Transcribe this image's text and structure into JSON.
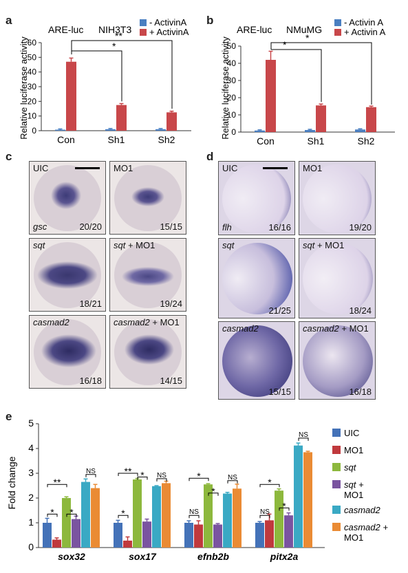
{
  "panels": {
    "a": {
      "letter": "a",
      "reporter": "ARE-luc",
      "cell_line": "NIH3T3",
      "legend": [
        "- ActivinA",
        "+ ActivinA"
      ],
      "ylabel": "Relative luciferase activity",
      "sig": [
        "*",
        "**"
      ]
    },
    "b": {
      "letter": "b",
      "reporter": "ARE-luc",
      "cell_line": "NMuMG",
      "legend": [
        "- Activin A",
        "+ Activin A"
      ],
      "ylabel": "Relative luciferase activity",
      "sig": [
        "*",
        "*"
      ]
    },
    "c": {
      "letter": "c",
      "cells": [
        {
          "label": "UIC",
          "label_italic": "",
          "gene": "gsc",
          "count": "20/20"
        },
        {
          "label": "MO1",
          "label_italic": "",
          "gene": "",
          "count": "15/15"
        },
        {
          "label": "",
          "label_italic": "sqt",
          "gene": "",
          "count": "18/21"
        },
        {
          "label": " + MO1",
          "label_italic": "sqt",
          "gene": "",
          "count": "19/24"
        },
        {
          "label": "",
          "label_italic": "casmad2",
          "gene": "",
          "count": "16/18"
        },
        {
          "label": " + MO1",
          "label_italic": "casmad2",
          "gene": "",
          "count": "14/15"
        }
      ]
    },
    "d": {
      "letter": "d",
      "cells": [
        {
          "label": "UIC",
          "label_italic": "",
          "gene": "flh",
          "count": "16/16"
        },
        {
          "label": "MO1",
          "label_italic": "",
          "gene": "",
          "count": "19/20"
        },
        {
          "label": "",
          "label_italic": "sqt",
          "gene": "",
          "count": "21/25"
        },
        {
          "label": " + MO1",
          "label_italic": "sqt",
          "gene": "",
          "count": "18/24"
        },
        {
          "label": "",
          "label_italic": "casmad2",
          "gene": "",
          "count": "15/15"
        },
        {
          "label": " + MO1",
          "label_italic": "casmad2",
          "gene": "",
          "count": "16/18"
        }
      ]
    },
    "e": {
      "letter": "e",
      "ylabel": "Fold change",
      "legend": [
        {
          "text": "UIC",
          "text2": ""
        },
        {
          "text": "MO1",
          "text2": ""
        },
        {
          "text": "sqt",
          "text2": ""
        },
        {
          "text": "sqt +",
          "text2": "MO1"
        },
        {
          "text": "casmad2",
          "text2": ""
        },
        {
          "text": "casmad2 +",
          "text2": "MO1"
        }
      ],
      "sig_labels": {
        "star": "*",
        "double": "**",
        "ns": "NS"
      }
    }
  },
  "colors": {
    "minus": "#4a7fc1",
    "plus": "#c8474a",
    "uic": "#4472b8",
    "mo1": "#c0393d",
    "sqt": "#8db83d",
    "sqt_mo1": "#7a54a0",
    "casmad2": "#3aa9c4",
    "casmad2_mo1": "#ea8b34"
  },
  "chart_data": [
    {
      "id": "a",
      "type": "bar",
      "categories": [
        "Con",
        "Sh1",
        "Sh2"
      ],
      "series": [
        {
          "name": "- ActivinA",
          "values": [
            0.7,
            1.0,
            1.0
          ],
          "errors": [
            0.5,
            0.5,
            0.5
          ]
        },
        {
          "name": "+ ActivinA",
          "values": [
            47,
            17.5,
            12.5
          ],
          "errors": [
            2.5,
            1.0,
            0.8
          ]
        }
      ],
      "yticks": [
        0,
        10,
        20,
        30,
        40,
        50,
        60
      ],
      "ylim": [
        0,
        60
      ],
      "ylabel": "Relative luciferase activity"
    },
    {
      "id": "b",
      "type": "bar",
      "categories": [
        "Con",
        "Sh1",
        "Sh2"
      ],
      "series": [
        {
          "name": "- Activin A",
          "values": [
            0.9,
            1.2,
            1.5
          ],
          "errors": [
            0.4,
            0.4,
            0.4
          ]
        },
        {
          "name": "+ Activin A",
          "values": [
            42,
            15.5,
            14.5
          ],
          "errors": [
            5,
            0.8,
            0.6
          ]
        }
      ],
      "yticks": [
        0,
        10,
        20,
        30,
        40,
        50
      ],
      "ylim": [
        0,
        50
      ],
      "ylabel": "Relative luciferase activity"
    },
    {
      "id": "e",
      "type": "bar",
      "categories": [
        "sox32",
        "sox17",
        "efnb2b",
        "pitx2a"
      ],
      "series": [
        {
          "name": "UIC",
          "values": [
            1.0,
            1.0,
            1.0,
            1.0
          ],
          "errors": [
            0.18,
            0.1,
            0.08,
            0.05
          ]
        },
        {
          "name": "MO1",
          "values": [
            0.32,
            0.28,
            0.93,
            1.1
          ],
          "errors": [
            0.07,
            0.15,
            0.15,
            0.25
          ]
        },
        {
          "name": "sqt",
          "values": [
            2.0,
            2.75,
            2.55,
            2.3
          ],
          "errors": [
            0.05,
            0.04,
            0.03,
            0.07
          ]
        },
        {
          "name": "sqt + MO1",
          "values": [
            1.15,
            1.05,
            0.93,
            1.3
          ],
          "errors": [
            0.12,
            0.1,
            0.04,
            0.1
          ]
        },
        {
          "name": "casmad2",
          "values": [
            2.65,
            2.48,
            2.18,
            4.12
          ],
          "errors": [
            0.12,
            0.02,
            0.05,
            0.1
          ]
        },
        {
          "name": "casmad2 + MO1",
          "values": [
            2.4,
            2.6,
            2.38,
            3.85
          ],
          "errors": [
            0.15,
            0.08,
            0.18,
            0.04
          ]
        }
      ],
      "yticks": [
        0,
        1,
        2,
        3,
        4,
        5
      ],
      "ylim": [
        0,
        5
      ],
      "ylabel": "Fold change"
    }
  ]
}
